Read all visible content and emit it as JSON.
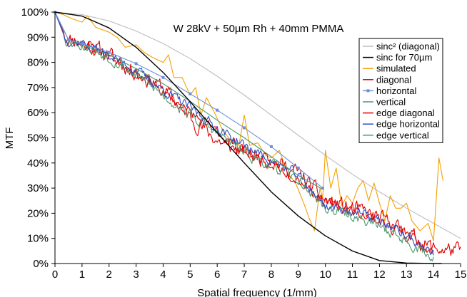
{
  "chart_data": {
    "type": "line",
    "title": "W 28kV + 50µm Rh + 40mm PMMA",
    "xlabel": "Spatial frequency (1/mm)",
    "ylabel": "MTF",
    "xlim": [
      0,
      15
    ],
    "ylim": [
      0,
      100
    ],
    "x_ticks": [
      "0",
      "1",
      "2",
      "3",
      "4",
      "5",
      "6",
      "7",
      "8",
      "9",
      "10",
      "11",
      "12",
      "13",
      "14",
      "15"
    ],
    "y_ticks": [
      "0%",
      "10%",
      "20%",
      "30%",
      "40%",
      "50%",
      "60%",
      "70%",
      "80%",
      "90%",
      "100%"
    ],
    "grid": false,
    "legend_position": "right",
    "series": [
      {
        "name": "sinc² (diagonal)",
        "color": "#bdbdbd",
        "noise": 0,
        "x": [
          0,
          1,
          2,
          3,
          4,
          5,
          6,
          7,
          8,
          9,
          10,
          11,
          12,
          13,
          14,
          15
        ],
        "y": [
          100,
          99,
          96.5,
          92.5,
          87.5,
          81.5,
          74.5,
          67,
          59,
          51,
          43,
          35.5,
          28.5,
          22,
          16,
          10
        ]
      },
      {
        "name": "sinc for 70µm",
        "color": "#000000",
        "noise": 0,
        "x": [
          0,
          1,
          2,
          3,
          4,
          5,
          6,
          7,
          8,
          9,
          10,
          11,
          12,
          13,
          14,
          14.3
        ],
        "y": [
          100,
          98.4,
          93.7,
          86,
          76,
          64.4,
          52,
          40,
          28.5,
          18.9,
          11,
          5,
          1.2,
          0.2,
          0,
          0
        ]
      },
      {
        "name": "simulated",
        "color": "#f5a000",
        "noise": 0,
        "x": [
          0,
          0.3,
          0.6,
          1,
          1.2,
          1.5,
          2,
          2.3,
          2.6,
          3,
          3.3,
          3.6,
          4,
          4.2,
          4.4,
          4.7,
          5,
          5.2,
          5.4,
          5.6,
          5.9,
          6.2,
          6.5,
          6.8,
          7,
          7.2,
          7.5,
          7.8,
          8,
          8.3,
          8.6,
          8.9,
          9.2,
          9.4,
          9.6,
          9.8,
          9.9,
          10,
          10.2,
          10.4,
          10.6,
          10.8,
          11,
          11.2,
          11.4,
          11.6,
          11.8,
          12,
          12.2,
          12.4,
          12.6,
          12.8,
          13,
          13.2,
          13.5,
          13.8,
          14,
          14.2,
          14.35
        ],
        "y": [
          100,
          99,
          97.5,
          96,
          98.5,
          94,
          92,
          90,
          86,
          87,
          84,
          82,
          80,
          83,
          74,
          74,
          67,
          70,
          59,
          66,
          60,
          53,
          49,
          47,
          59,
          47,
          48,
          43,
          42,
          45,
          36,
          32,
          24,
          18,
          13,
          30,
          26,
          45,
          30,
          38,
          23,
          27,
          24,
          30,
          33,
          25,
          32,
          24,
          17,
          27,
          22,
          22,
          24,
          17,
          13,
          16,
          9,
          42,
          33
        ]
      },
      {
        "name": "diagonal",
        "color": "#e00000",
        "noise": 2.6,
        "seed": 11,
        "x": [
          0,
          0.4,
          1,
          2,
          3,
          4,
          5,
          6,
          7,
          8,
          9,
          10,
          11,
          12,
          13,
          14,
          15
        ],
        "y": [
          100,
          90,
          88,
          83,
          76,
          70,
          58,
          49,
          44,
          41,
          36,
          25,
          22,
          18,
          12,
          6,
          5
        ]
      },
      {
        "name": "horizontal",
        "color": "#6c8fd8",
        "noise": 0,
        "marker": true,
        "x": [
          0,
          0.5,
          1,
          2,
          3,
          4,
          5,
          6,
          7,
          8,
          9,
          9.9
        ],
        "y": [
          100,
          89,
          87.5,
          84,
          79.5,
          74,
          67.5,
          61,
          54,
          46.5,
          38,
          30
        ]
      },
      {
        "name": "vertical",
        "color": "#4b9a6e",
        "noise": 0,
        "x": [
          0,
          0.5,
          1,
          2,
          3,
          4,
          5,
          6,
          7,
          8,
          9,
          9.9
        ],
        "y": [
          100,
          89,
          87,
          83,
          77.5,
          71.5,
          64.5,
          57,
          50,
          42.5,
          35,
          29.5
        ]
      },
      {
        "name": "edge diagonal",
        "color": "#e00000",
        "noise": 1.8,
        "seed": 23,
        "x": [
          0,
          0.4,
          1,
          2,
          3,
          4,
          5,
          6,
          7,
          8,
          9,
          10,
          11,
          12,
          13,
          14
        ],
        "y": [
          100,
          89,
          88,
          83,
          76,
          68,
          60,
          52,
          45,
          40,
          34,
          24,
          21,
          17,
          12,
          5
        ]
      },
      {
        "name": "edge horizontal",
        "color": "#2d4fc8",
        "noise": 1.6,
        "seed": 37,
        "x": [
          0,
          0.4,
          1,
          2,
          3,
          4,
          5,
          6,
          7,
          8,
          9,
          10,
          11,
          12,
          13,
          14
        ],
        "y": [
          100,
          89,
          88,
          83,
          77,
          69,
          62,
          54,
          47,
          41,
          35,
          23,
          21,
          17,
          11,
          4
        ]
      },
      {
        "name": "edge vertical",
        "color": "#4b9a6e",
        "noise": 1.8,
        "seed": 53,
        "x": [
          0,
          0.4,
          1,
          2,
          3,
          4,
          5,
          6,
          7,
          8,
          9,
          10,
          11,
          12,
          13,
          14
        ],
        "y": [
          100,
          89,
          87,
          82,
          75,
          67,
          59,
          52,
          44,
          39,
          33,
          22,
          19,
          15,
          9,
          2
        ]
      }
    ]
  }
}
